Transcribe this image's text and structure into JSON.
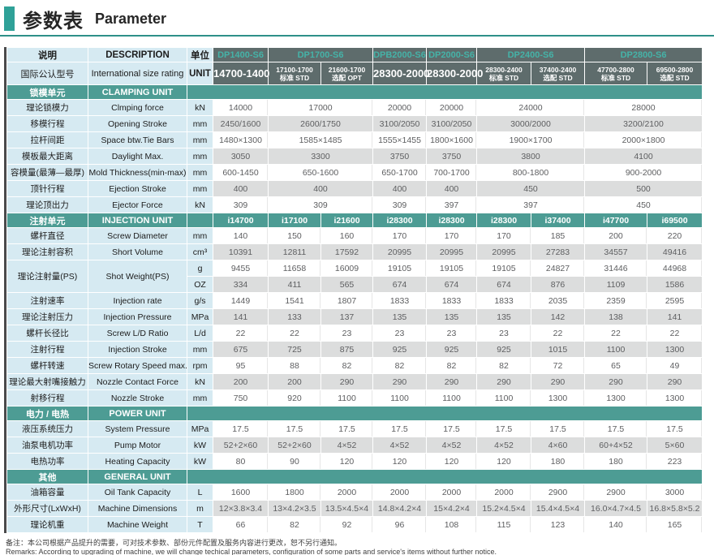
{
  "page": {
    "title_zh": "参数表",
    "title_en": "Parameter"
  },
  "colors": {
    "accent_teal": "#2fa198",
    "section_teal": "#4d9c94",
    "header_dark": "#5e6c6c",
    "model_text_teal": "#45b3a8",
    "label_blue": "#d6eaf2",
    "row_gray": "#dcdddd",
    "value_text": "#5d5e60"
  },
  "table": {
    "header": {
      "desc_zh": "说明",
      "desc_en": "DESCRIPTION",
      "unit_zh": "单位",
      "rating_zh": "国际公认型号",
      "rating_en": "International size rating",
      "unit_en": "UNIT",
      "models": [
        {
          "name": "DP1400-S6",
          "cols": [
            {
              "rating": "14700-1400",
              "big": true
            }
          ]
        },
        {
          "name": "DP1700-S6",
          "cols": [
            {
              "rating": "17100-1700",
              "tag": "标准 STD"
            },
            {
              "rating": "21600-1700",
              "tag": "选配 OPT"
            }
          ]
        },
        {
          "name": "DPB2000-S6",
          "cols": [
            {
              "rating": "28300-2000",
              "big": true
            }
          ]
        },
        {
          "name": "DP2000-S6",
          "cols": [
            {
              "rating": "28300-2000",
              "big": true
            }
          ]
        },
        {
          "name": "DP2400-S6",
          "cols": [
            {
              "rating": "28300-2400",
              "tag": "标准 STD"
            },
            {
              "rating": "37400-2400",
              "tag": "选配 STD"
            }
          ]
        },
        {
          "name": "DP2800-S6",
          "cols": [
            {
              "rating": "47700-2800",
              "tag": "标准 STD"
            },
            {
              "rating": "69500-2800",
              "tag": "选配 STD"
            }
          ]
        }
      ]
    },
    "sections": [
      {
        "zh": "锁模单元",
        "en": "CLAMPING UNIT",
        "values": [],
        "rows": [
          {
            "zh": "理论锁模力",
            "en": "Clmping force",
            "unit": "kN",
            "spans": [
              1,
              2,
              1,
              1,
              2,
              2
            ],
            "values": [
              "14000",
              "17000",
              "20000",
              "20000",
              "24000",
              "28000"
            ]
          },
          {
            "zh": "移模行程",
            "en": "Opening Stroke",
            "unit": "mm",
            "spans": [
              1,
              2,
              1,
              1,
              2,
              2
            ],
            "values": [
              "2450/1600",
              "2600/1750",
              "3100/2050",
              "3100/2050",
              "3000/2000",
              "3200/2100"
            ]
          },
          {
            "zh": "拉杆间距",
            "en": "Space btw.Tie Bars",
            "unit": "mm",
            "spans": [
              1,
              2,
              1,
              1,
              2,
              2
            ],
            "values": [
              "1480×1300",
              "1585×1485",
              "1555×1455",
              "1800×1600",
              "1900×1700",
              "2000×1800"
            ]
          },
          {
            "zh": "模板最大距离",
            "en": "Daylight Max.",
            "unit": "mm",
            "spans": [
              1,
              2,
              1,
              1,
              2,
              2
            ],
            "values": [
              "3050",
              "3300",
              "3750",
              "3750",
              "3800",
              "4100"
            ]
          },
          {
            "zh": "容模量(最薄—最厚)",
            "en": "Mold Thickness(min-max)",
            "unit": "mm",
            "spans": [
              1,
              2,
              1,
              1,
              2,
              2
            ],
            "values": [
              "600-1450",
              "650-1600",
              "650-1700",
              "700-1700",
              "800-1800",
              "900-2000"
            ]
          },
          {
            "zh": "顶针行程",
            "en": "Ejection Stroke",
            "unit": "mm",
            "spans": [
              1,
              2,
              1,
              1,
              2,
              2
            ],
            "values": [
              "400",
              "400",
              "400",
              "400",
              "450",
              "500"
            ]
          },
          {
            "zh": "理论顶出力",
            "en": "Ejector Force",
            "unit": "kN",
            "spans": [
              1,
              2,
              1,
              1,
              2,
              2
            ],
            "values": [
              "309",
              "309",
              "309",
              "397",
              "397",
              "450"
            ]
          }
        ]
      },
      {
        "zh": "注射单元",
        "en": "INJECTION UNIT",
        "values": [
          "i14700",
          "i17100",
          "i21600",
          "i28300",
          "i28300",
          "i28300",
          "i37400",
          "i47700",
          "i69500"
        ],
        "rows": [
          {
            "zh": "螺杆直径",
            "en": "Screw Diameter",
            "unit": "mm",
            "values": [
              "140",
              "150",
              "160",
              "170",
              "170",
              "170",
              "185",
              "200",
              "220"
            ]
          },
          {
            "zh": "理论注射容积",
            "en": "Short Volume",
            "unit": "cm³",
            "values": [
              "10391",
              "12811",
              "17592",
              "20995",
              "20995",
              "20995",
              "27283",
              "34557",
              "49416"
            ]
          },
          {
            "zh": "理论注射量(PS)",
            "en": "Shot Weight(PS)",
            "unit": "g",
            "rowspan": 2,
            "values": [
              "9455",
              "11658",
              "16009",
              "19105",
              "19105",
              "19105",
              "24827",
              "31446",
              "44968"
            ]
          },
          {
            "cont": true,
            "unit": "OZ",
            "values": [
              "334",
              "411",
              "565",
              "674",
              "674",
              "674",
              "876",
              "1109",
              "1586"
            ]
          },
          {
            "zh": "注射速率",
            "en": "Injection rate",
            "unit": "g/s",
            "values": [
              "1449",
              "1541",
              "1807",
              "1833",
              "1833",
              "1833",
              "2035",
              "2359",
              "2595"
            ]
          },
          {
            "zh": "理论注射压力",
            "en": "Injection Pressure",
            "unit": "MPa",
            "values": [
              "141",
              "133",
              "137",
              "135",
              "135",
              "135",
              "142",
              "138",
              "141"
            ]
          },
          {
            "zh": "螺杆长径比",
            "en": "Screw L/D Ratio",
            "unit": "L/d",
            "values": [
              "22",
              "22",
              "23",
              "23",
              "23",
              "23",
              "22",
              "22",
              "22"
            ]
          },
          {
            "zh": "注射行程",
            "en": "Injection Stroke",
            "unit": "mm",
            "values": [
              "675",
              "725",
              "875",
              "925",
              "925",
              "925",
              "1015",
              "1100",
              "1300"
            ]
          },
          {
            "zh": "螺杆转速",
            "en": "Screw Rotary Speed max.",
            "unit": "rpm",
            "values": [
              "95",
              "88",
              "82",
              "82",
              "82",
              "82",
              "72",
              "65",
              "49"
            ]
          },
          {
            "zh": "理论最大射嘴接触力",
            "en": "Nozzle Contact Force",
            "unit": "kN",
            "values": [
              "200",
              "200",
              "290",
              "290",
              "290",
              "290",
              "290",
              "290",
              "290"
            ]
          },
          {
            "zh": "射移行程",
            "en": "Nozzle Stroke",
            "unit": "mm",
            "values": [
              "750",
              "920",
              "1100",
              "1100",
              "1100",
              "1100",
              "1300",
              "1300",
              "1300"
            ]
          }
        ]
      },
      {
        "zh": "电力 / 电热",
        "en": "POWER UNIT",
        "values": [],
        "rows": [
          {
            "zh": "液压系统压力",
            "en": "System Pressure",
            "unit": "MPa",
            "values": [
              "17.5",
              "17.5",
              "17.5",
              "17.5",
              "17.5",
              "17.5",
              "17.5",
              "17.5",
              "17.5"
            ]
          },
          {
            "zh": "油泵电机功率",
            "en": "Pump Motor",
            "unit": "kW",
            "values": [
              "52+2×60",
              "52+2×60",
              "4×52",
              "4×52",
              "4×52",
              "4×52",
              "4×60",
              "60+4×52",
              "5×60"
            ]
          },
          {
            "zh": "电热功率",
            "en": "Heating Capacity",
            "unit": "kW",
            "values": [
              "80",
              "90",
              "120",
              "120",
              "120",
              "120",
              "180",
              "180",
              "223"
            ]
          }
        ]
      },
      {
        "zh": "其他",
        "en": "GENERAL UNIT",
        "values": [],
        "rows": [
          {
            "zh": "油箱容量",
            "en": "Oil Tank Capacity",
            "unit": "L",
            "values": [
              "1600",
              "1800",
              "2000",
              "2000",
              "2000",
              "2000",
              "2900",
              "2900",
              "3000"
            ]
          },
          {
            "zh": "外形尺寸(LxWxH)",
            "en": "Machine Dimensions",
            "unit": "m",
            "values": [
              "12×3.8×3.4",
              "13×4.2×3.5",
              "13.5×4.5×4",
              "14.8×4.2×4",
              "15×4.2×4",
              "15.2×4.5×4",
              "15.4×4.5×4",
              "16.0×4.7×4.5",
              "16.8×5.8×5.2"
            ]
          },
          {
            "zh": "理论机重",
            "en": "Machine Weight",
            "unit": "T",
            "values": [
              "66",
              "82",
              "92",
              "96",
              "108",
              "115",
              "123",
              "140",
              "165"
            ]
          }
        ]
      }
    ]
  },
  "remarks": {
    "zh": "备注：本公司根据产品提升的需要，可对技术参数、部份元件配置及服务内容进行更改，恕不另行通知。",
    "en": "Remarks: According to upgrading of machine, we will change techical parameters, configuration of some parts and service's items without further notice."
  }
}
